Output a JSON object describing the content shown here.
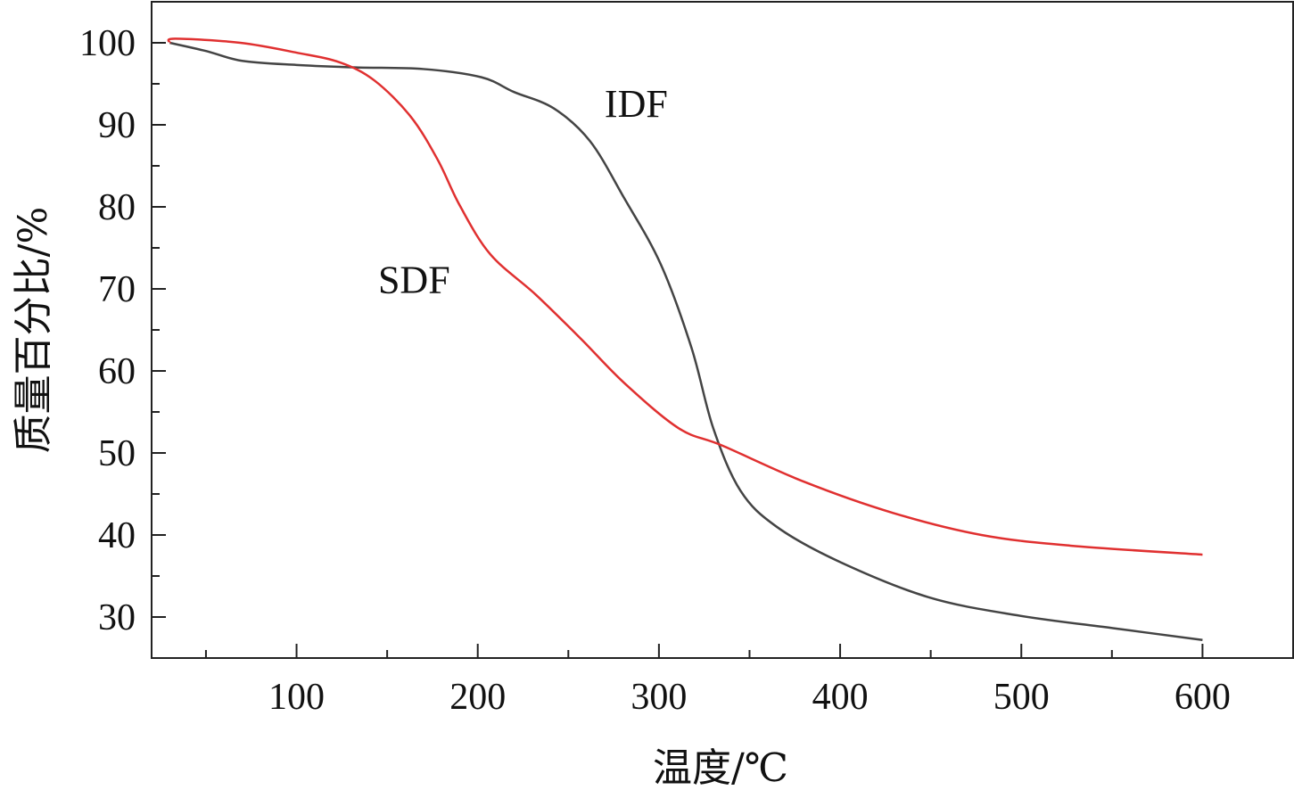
{
  "chart_data": {
    "type": "line",
    "title": "",
    "xlabel": "温度/℃",
    "ylabel": "质量百分比/%",
    "xlim": [
      20,
      650
    ],
    "ylim": [
      25,
      105
    ],
    "xticks": [
      100,
      200,
      300,
      400,
      500,
      600
    ],
    "xtick_labels": [
      "100",
      "200",
      "300",
      "400",
      "500",
      "600"
    ],
    "yticks": [
      30,
      40,
      50,
      60,
      70,
      80,
      90,
      100
    ],
    "ytick_labels": [
      "30",
      "40",
      "50",
      "60",
      "70",
      "80",
      "90",
      "100"
    ],
    "grid": false,
    "series": [
      {
        "name": "IDF",
        "color": "#444444",
        "x": [
          30,
          50,
          70,
          100,
          133,
          170,
          202,
          220,
          242,
          262,
          281,
          301,
          318,
          330,
          345,
          365,
          400,
          449,
          498,
          552,
          600
        ],
        "y": [
          100,
          99,
          97.8,
          97.3,
          97,
          96.8,
          95.8,
          94,
          92,
          88,
          81,
          73,
          62.8,
          53,
          45.4,
          41,
          36.7,
          32.4,
          30.2,
          28.6,
          27.2
        ]
      },
      {
        "name": "SDF",
        "color": "#e03030",
        "x": [
          30,
          33,
          69,
          100,
          124,
          143,
          163,
          178,
          190,
          207,
          232,
          257,
          281,
          311,
          335,
          380,
          429,
          478,
          527,
          600
        ],
        "y": [
          100,
          100.5,
          100,
          98.8,
          97.6,
          95.4,
          91,
          85.7,
          80.2,
          74.2,
          69.3,
          63.9,
          58.5,
          53,
          50.9,
          46.5,
          42.7,
          40,
          38.7,
          37.6
        ]
      }
    ],
    "annotations": [
      {
        "text": "IDF",
        "x": 270,
        "y": 91
      },
      {
        "text": "SDF",
        "x": 145,
        "y": 69.5
      }
    ]
  }
}
